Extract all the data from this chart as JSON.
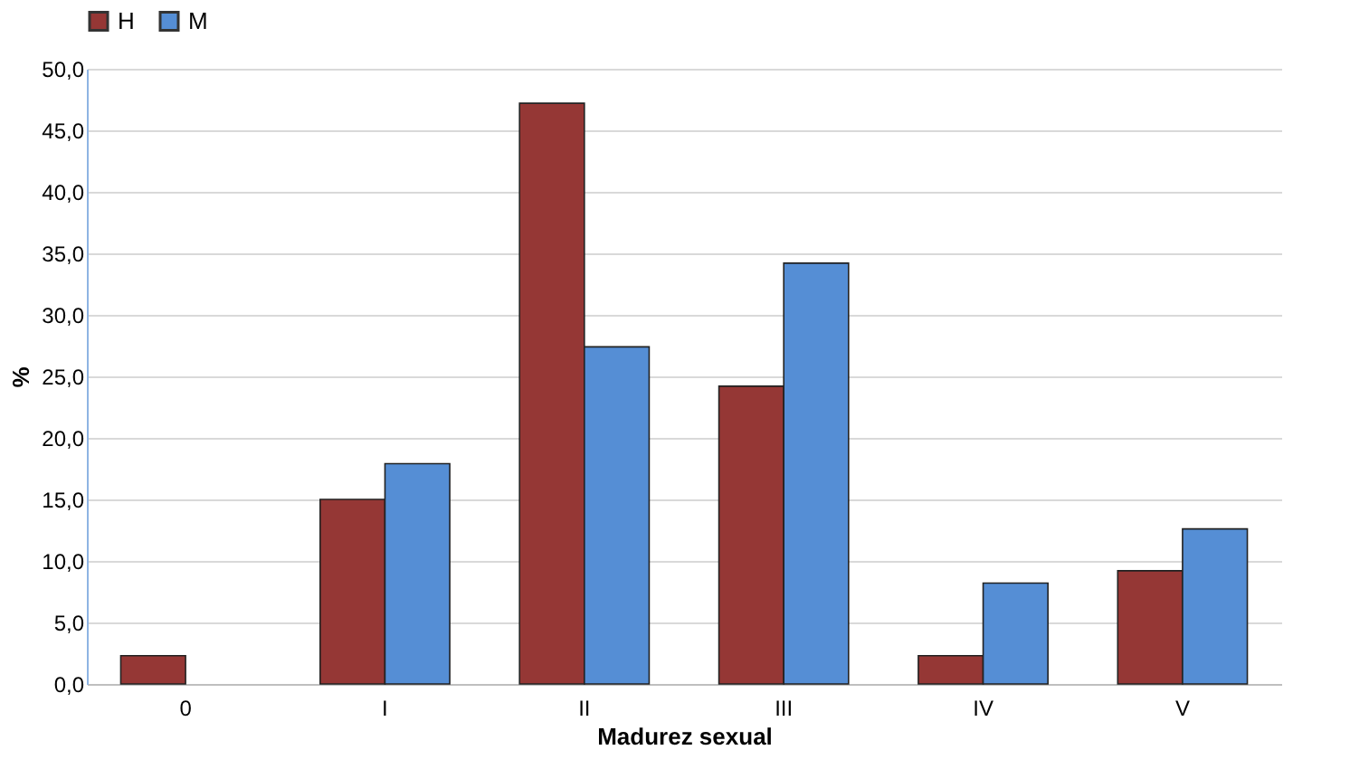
{
  "chart_data": {
    "type": "bar",
    "xlabel": "Madurez sexual",
    "ylabel": "%",
    "categories": [
      "0",
      "I",
      "II",
      "III",
      "IV",
      "V"
    ],
    "series": [
      {
        "name": "H",
        "color": "#953735",
        "values": [
          2.3,
          15.0,
          47.2,
          24.2,
          2.3,
          9.2
        ]
      },
      {
        "name": "M",
        "color": "#558ed5",
        "values": [
          null,
          17.9,
          27.4,
          34.2,
          8.2,
          12.6
        ]
      }
    ],
    "ylim": [
      0,
      50
    ],
    "yticks": [
      {
        "value": 0,
        "label": "0,0"
      },
      {
        "value": 5,
        "label": "5,0"
      },
      {
        "value": 10,
        "label": "10,0"
      },
      {
        "value": 15,
        "label": "15,0"
      },
      {
        "value": 20,
        "label": "20,0"
      },
      {
        "value": 25,
        "label": "25,0"
      },
      {
        "value": 30,
        "label": "30,0"
      },
      {
        "value": 35,
        "label": "35,0"
      },
      {
        "value": 40,
        "label": "40,0"
      },
      {
        "value": 45,
        "label": "45,0"
      },
      {
        "value": 50,
        "label": "50,0"
      }
    ],
    "grid": "y",
    "legend": "top"
  }
}
